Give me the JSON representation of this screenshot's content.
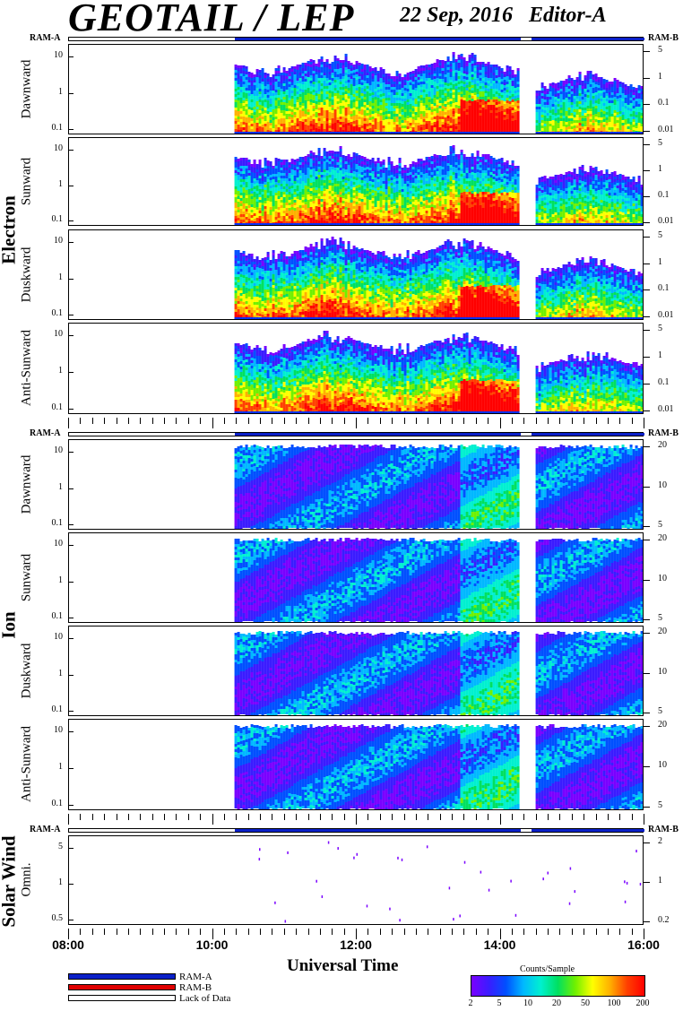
{
  "header": {
    "title": "GEOTAIL / LEP",
    "date": "22 Sep, 2016",
    "editor": "Editor-A"
  },
  "sections": [
    {
      "label": "Electron",
      "ram_left": "RAM-A",
      "ram_right": "RAM-B",
      "panels": [
        {
          "label": "Dawnward",
          "left_ticks": [
            "10",
            "1",
            "0.1"
          ],
          "right_ticks": [
            "5",
            "1",
            "0.1",
            "0.01"
          ]
        },
        {
          "label": "Sunward",
          "left_ticks": [
            "10",
            "1",
            "0.1"
          ],
          "right_ticks": [
            "5",
            "1",
            "0.1",
            "0.01"
          ]
        },
        {
          "label": "Duskward",
          "left_ticks": [
            "10",
            "1",
            "0.1"
          ],
          "right_ticks": [
            "5",
            "1",
            "0.1",
            "0.01"
          ]
        },
        {
          "label": "Anti-Sunward",
          "left_ticks": [
            "10",
            "1",
            "0.1"
          ],
          "right_ticks": [
            "5",
            "1",
            "0.1",
            "0.01"
          ]
        }
      ]
    },
    {
      "label": "Ion",
      "ram_left": "RAM-A",
      "ram_right": "RAM-B",
      "panels": [
        {
          "label": "Dawnward",
          "left_ticks": [
            "10",
            "1",
            "0.1"
          ],
          "right_ticks": [
            "20",
            "10",
            "5"
          ]
        },
        {
          "label": "Sunward",
          "left_ticks": [
            "10",
            "1",
            "0.1"
          ],
          "right_ticks": [
            "20",
            "10",
            "5"
          ]
        },
        {
          "label": "Duskward",
          "left_ticks": [
            "10",
            "1",
            "0.1"
          ],
          "right_ticks": [
            "20",
            "10",
            "5"
          ]
        },
        {
          "label": "Anti-Sunward",
          "left_ticks": [
            "10",
            "1",
            "0.1"
          ],
          "right_ticks": [
            "20",
            "10",
            "5"
          ]
        }
      ]
    },
    {
      "label": "Solar Wind",
      "ram_left": "RAM-A",
      "ram_right": "RAM-B",
      "panels": [
        {
          "label": "Omni.",
          "left_ticks": [
            "5",
            "1",
            "0.5"
          ],
          "right_ticks": [
            "2",
            "1",
            "0.2"
          ]
        }
      ]
    }
  ],
  "chart_data": {
    "type": "heatmap",
    "xlabel": "Universal Time",
    "x_ticks": [
      "08:00",
      "10:00",
      "12:00",
      "14:00",
      "16:00"
    ],
    "x_range_hours": [
      8,
      16
    ],
    "data_start_hour": 10.3,
    "data_gaps_hours": [
      [
        14.25,
        14.45
      ]
    ],
    "colorbar": {
      "title": "Counts/Sample",
      "ticks": [
        "2",
        "5",
        "10",
        "20",
        "50",
        "100",
        "200"
      ],
      "colors": [
        "#7a00ff",
        "#3b1cff",
        "#0050ff",
        "#00b8ff",
        "#00f0d0",
        "#00e060",
        "#70f000",
        "#ffff00",
        "#ffb000",
        "#ff4000",
        "#ff0000"
      ]
    }
  },
  "legend": {
    "items": [
      {
        "label": "RAM-A",
        "color": "#0a20c8"
      },
      {
        "label": "RAM-B",
        "color": "#e00000"
      },
      {
        "label": "Lack of Data",
        "color": "#ffffff"
      }
    ]
  }
}
